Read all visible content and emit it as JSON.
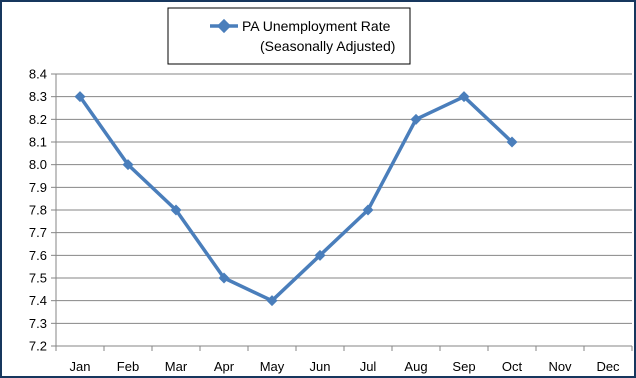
{
  "chart_data": {
    "type": "line",
    "title": "",
    "xlabel": "",
    "ylabel": "",
    "categories": [
      "Jan",
      "Feb",
      "Mar",
      "Apr",
      "May",
      "Jun",
      "Jul",
      "Aug",
      "Sep",
      "Oct",
      "Nov",
      "Dec"
    ],
    "series": [
      {
        "name": "PA Unemployment Rate\n(Seasonally Adjusted)",
        "name_lines": [
          "PA Unemployment Rate",
          "(Seasonally Adjusted)"
        ],
        "values": [
          8.3,
          8.0,
          7.8,
          7.5,
          7.4,
          7.6,
          7.8,
          8.2,
          8.3,
          8.1,
          null,
          null
        ],
        "color": "#4a7ebb",
        "marker": "diamond"
      }
    ],
    "ylim": [
      7.2,
      8.4
    ],
    "yticks": [
      "7.2",
      "7.3",
      "7.4",
      "7.5",
      "7.6",
      "7.7",
      "7.8",
      "7.9",
      "8.0",
      "8.1",
      "8.2",
      "8.3",
      "8.4"
    ],
    "grid": true,
    "legend_position": "top-center"
  },
  "colors": {
    "series": "#4a7ebb",
    "gridline": "#868686",
    "frame": "#17375e"
  }
}
